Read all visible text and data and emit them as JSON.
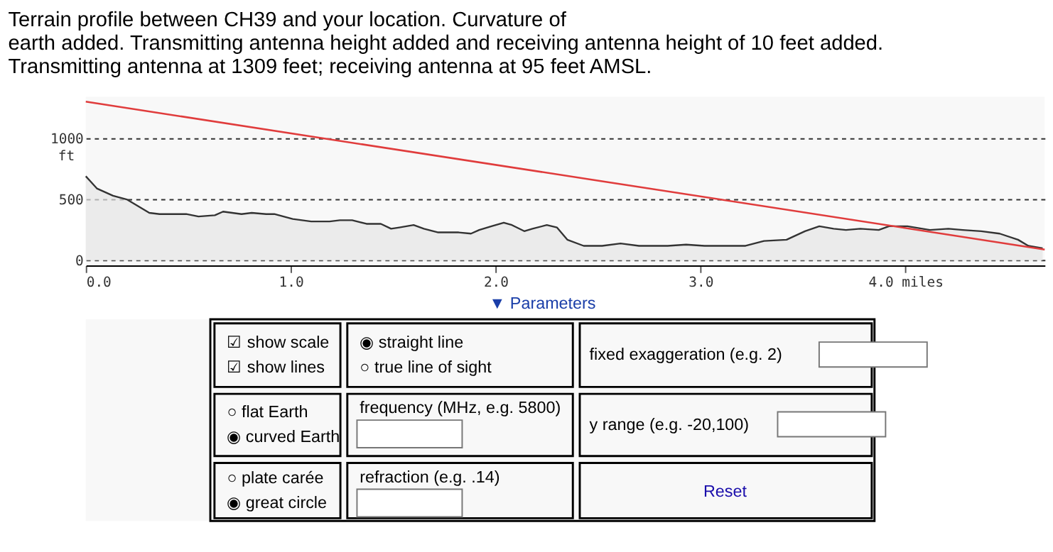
{
  "chart_data": [
    {
      "type": "area",
      "title": "Terrain profile between CH39 and your location. Curvature of\nearth added. Transmitting antenna height added and receiving antenna height of 10 feet added.\nTransmitting antenna at 1309 feet; receiving antenna at 95 feet AMSL.",
      "ylabel": "ft",
      "xlim": [
        0,
        4.68
      ],
      "ylim": [
        -40,
        1340
      ],
      "xticks": [
        {
          "value": 0,
          "label": "0.0"
        },
        {
          "value": 1,
          "label": "1.0"
        },
        {
          "value": 2,
          "label": "2.0"
        },
        {
          "value": 3,
          "label": "3.0"
        },
        {
          "value": 4,
          "label": "4.0 miles"
        }
      ],
      "yticks": [
        0,
        500,
        1000
      ],
      "grid": "y",
      "line_style": "solid",
      "series": [
        {
          "color": "#333333",
          "x": [
            0,
            0.054,
            0.133,
            0.2,
            0.31,
            0.36,
            0.49,
            0.55,
            0.63,
            0.67,
            0.76,
            0.81,
            0.88,
            0.92,
            1.01,
            1.1,
            1.19,
            1.24,
            1.3,
            1.37,
            1.44,
            1.49,
            1.53,
            1.6,
            1.65,
            1.72,
            1.82,
            1.88,
            1.92,
            1.98,
            2.04,
            2.08,
            2.14,
            2.18,
            2.25,
            2.3,
            2.35,
            2.43,
            2.52,
            2.61,
            2.7,
            2.84,
            2.93,
            3.02,
            3.22,
            3.31,
            3.42,
            3.51,
            3.58,
            3.65,
            3.71,
            3.78,
            3.87,
            3.92,
            4.01,
            4.12,
            4.21,
            4.28,
            4.37,
            4.46,
            4.55,
            4.6,
            4.67
          ],
          "values": [
            690,
            590,
            530,
            500,
            390,
            380,
            380,
            360,
            370,
            400,
            380,
            390,
            380,
            380,
            340,
            320,
            320,
            330,
            330,
            300,
            300,
            260,
            270,
            290,
            260,
            230,
            230,
            220,
            250,
            280,
            310,
            290,
            240,
            260,
            290,
            270,
            170,
            120,
            120,
            140,
            120,
            120,
            130,
            120,
            120,
            160,
            170,
            240,
            280,
            260,
            250,
            260,
            250,
            280,
            280,
            250,
            260,
            250,
            240,
            220,
            170,
            120,
            100
          ]
        },
        {
          "type": "line",
          "color": "#e03c3c",
          "x": [
            0,
            4.68
          ],
          "values": [
            1300,
            90
          ]
        }
      ]
    },
    {
      "type": "other",
      "annotations": [
        "▼ Parameters",
        "☑ show scale\n☑ show lines",
        "◉ straight line\n○ true line of sight",
        "fixed exaggeration (e.g. 2)",
        "○ flat Earth\n◉ curved Earth",
        "frequency (MHz, e.g. 5800)",
        "y range (e.g. -20,100)",
        "○ plate carée\n◉ great circle",
        "refraction (e.g. .14)",
        "Reset"
      ]
    }
  ]
}
